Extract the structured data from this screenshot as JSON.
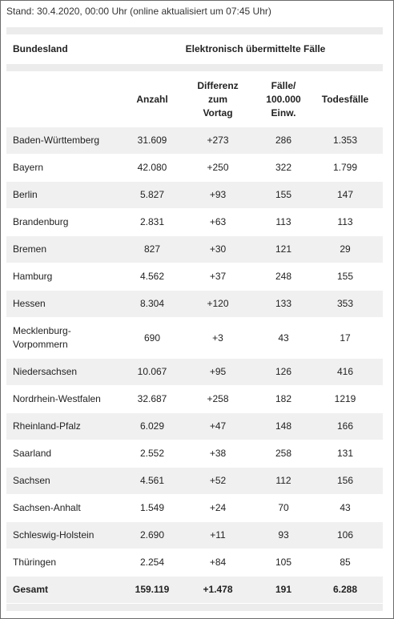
{
  "header": {
    "stand": "Stand: 30.4.2020, 00:00 Uhr (online aktualisiert um 07:45 Uhr)"
  },
  "table": {
    "group_header": [
      "Bundesland",
      "Elektronisch übermittelte Fälle"
    ],
    "columns": [
      "Anzahl",
      "Differenz\nzum\nVortag",
      "Fälle/\n100.000\nEinw.",
      "Todesfälle"
    ],
    "rows": [
      [
        "Baden-Württemberg",
        "31.609",
        "+273",
        "286",
        "1.353"
      ],
      [
        "Bayern",
        "42.080",
        "+250",
        "322",
        "1.799"
      ],
      [
        "Berlin",
        "5.827",
        "+93",
        "155",
        "147"
      ],
      [
        "Brandenburg",
        "2.831",
        "+63",
        "113",
        "113"
      ],
      [
        "Bremen",
        "827",
        "+30",
        "121",
        "29"
      ],
      [
        "Hamburg",
        "4.562",
        "+37",
        "248",
        "155"
      ],
      [
        "Hessen",
        "8.304",
        "+120",
        "133",
        "353"
      ],
      [
        "Mecklenburg-\nVorpommern",
        "690",
        "+3",
        "43",
        "17"
      ],
      [
        "Niedersachsen",
        "10.067",
        "+95",
        "126",
        "416"
      ],
      [
        "Nordrhein-Westfalen",
        "32.687",
        "+258",
        "182",
        "1219"
      ],
      [
        "Rheinland-Pfalz",
        "6.029",
        "+47",
        "148",
        "166"
      ],
      [
        "Saarland",
        "2.552",
        "+38",
        "258",
        "131"
      ],
      [
        "Sachsen",
        "4.561",
        "+52",
        "112",
        "156"
      ],
      [
        "Sachsen-Anhalt",
        "1.549",
        "+24",
        "70",
        "43"
      ],
      [
        "Schleswig-Holstein",
        "2.690",
        "+11",
        "93",
        "106"
      ],
      [
        "Thüringen",
        "2.254",
        "+84",
        "105",
        "85"
      ]
    ],
    "total": [
      "Gesamt",
      "159.119",
      "+1.478",
      "191",
      "6.288"
    ]
  }
}
